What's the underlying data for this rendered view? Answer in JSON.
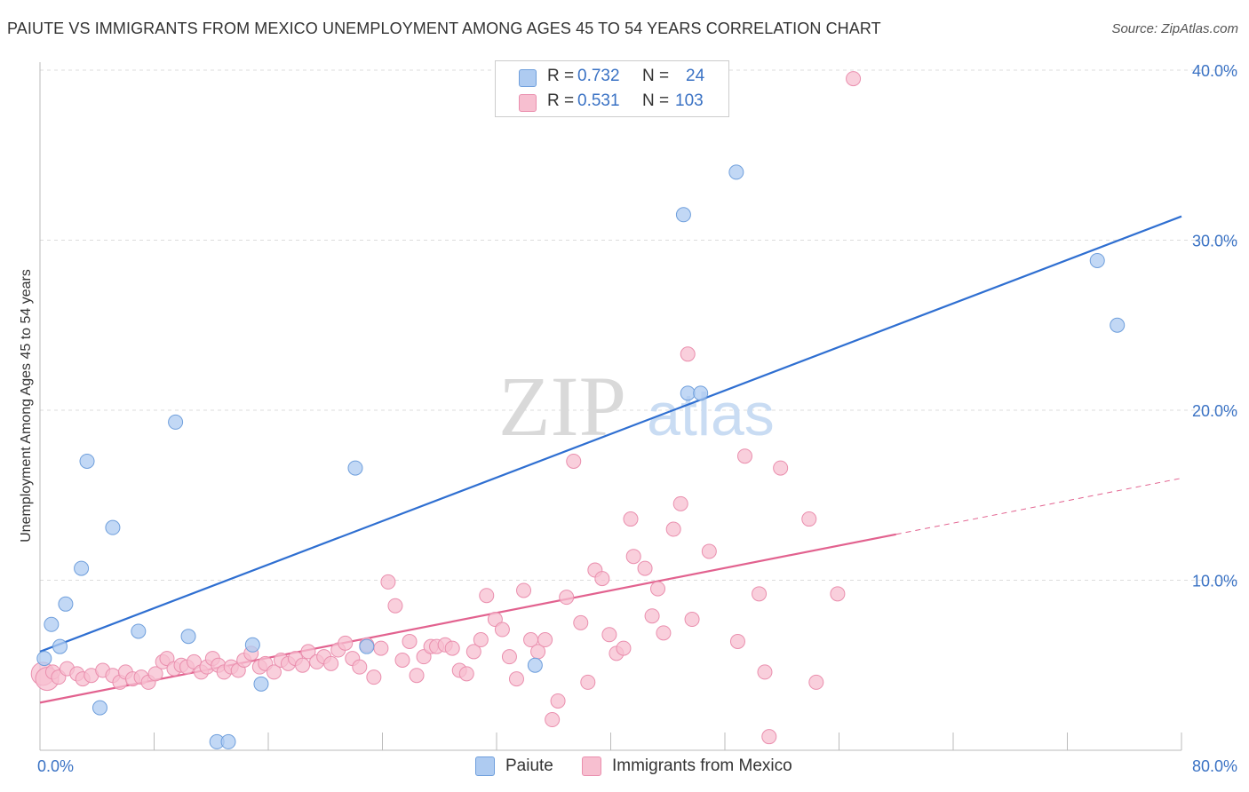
{
  "title": "PAIUTE VS IMMIGRANTS FROM MEXICO UNEMPLOYMENT AMONG AGES 45 TO 54 YEARS CORRELATION CHART",
  "source": "Source: ZipAtlas.com",
  "watermark": {
    "zip": "ZIP",
    "atlas": "atlas"
  },
  "legend_top": [
    {
      "r_label": "R =",
      "r_value": "0.732",
      "n_label": "N =",
      "n_value": "24"
    },
    {
      "r_label": "R =",
      "r_value": "0.531",
      "n_label": "N =",
      "n_value": "103"
    }
  ],
  "legend_bottom": [
    "Paiute",
    "Immigrants from Mexico"
  ],
  "colors": {
    "paiute_fill": "#aecbf1",
    "paiute_stroke": "#6f9fdc",
    "paiute_line": "#2f6fd1",
    "mexico_fill": "#f7bfd0",
    "mexico_stroke": "#ea8fae",
    "mexico_line": "#e2628f",
    "axis_label": "#3a72c4",
    "grid": "#dddddd"
  },
  "chart_data": {
    "type": "scatter",
    "title": "PAIUTE VS IMMIGRANTS FROM MEXICO UNEMPLOYMENT AMONG AGES 45 TO 54 YEARS CORRELATION CHART",
    "xlabel": "",
    "ylabel": "Unemployment Among Ages 45 to 54 years",
    "xlim": [
      0,
      80
    ],
    "ylim": [
      0,
      40
    ],
    "x_tick_labels": [
      "0.0%",
      "80.0%"
    ],
    "y_ticks": [
      10,
      20,
      30,
      40
    ],
    "y_tick_labels": [
      "10.0%",
      "20.0%",
      "30.0%",
      "40.0%"
    ],
    "grid": true,
    "legend_position": "top-center",
    "series": [
      {
        "name": "Paiute",
        "r": 0.732,
        "n": 24,
        "trend": {
          "x": [
            0,
            80
          ],
          "y": [
            5.8,
            31.4
          ],
          "dashed_from": null
        },
        "points": [
          [
            0.3,
            5.4
          ],
          [
            0.8,
            7.4
          ],
          [
            1.4,
            6.1
          ],
          [
            1.8,
            8.6
          ],
          [
            2.9,
            10.7
          ],
          [
            3.3,
            17.0
          ],
          [
            4.2,
            2.5
          ],
          [
            5.1,
            13.1
          ],
          [
            6.9,
            7.0
          ],
          [
            9.5,
            19.3
          ],
          [
            10.4,
            6.7
          ],
          [
            12.4,
            0.5
          ],
          [
            13.2,
            0.5
          ],
          [
            14.9,
            6.2
          ],
          [
            15.5,
            3.9
          ],
          [
            22.1,
            16.6
          ],
          [
            22.9,
            6.1
          ],
          [
            34.7,
            5.0
          ],
          [
            45.1,
            31.5
          ],
          [
            45.4,
            21.0
          ],
          [
            46.3,
            21.0
          ],
          [
            48.8,
            34.0
          ],
          [
            74.1,
            28.8
          ],
          [
            75.5,
            25.0
          ]
        ]
      },
      {
        "name": "Immigrants from Mexico",
        "r": 0.531,
        "n": 103,
        "trend": {
          "x": [
            0,
            80
          ],
          "y": [
            2.8,
            16.0
          ],
          "solid_until_x": 60
        },
        "points": [
          [
            0.2,
            4.5
          ],
          [
            0.5,
            4.2
          ],
          [
            0.9,
            4.6
          ],
          [
            1.3,
            4.3
          ],
          [
            1.9,
            4.8
          ],
          [
            2.6,
            4.5
          ],
          [
            3.0,
            4.2
          ],
          [
            3.6,
            4.4
          ],
          [
            4.4,
            4.7
          ],
          [
            5.1,
            4.4
          ],
          [
            5.6,
            4.0
          ],
          [
            6.0,
            4.6
          ],
          [
            6.5,
            4.2
          ],
          [
            7.1,
            4.3
          ],
          [
            7.6,
            4.0
          ],
          [
            8.1,
            4.5
          ],
          [
            8.6,
            5.2
          ],
          [
            8.9,
            5.4
          ],
          [
            9.4,
            4.8
          ],
          [
            9.9,
            5.0
          ],
          [
            10.3,
            4.9
          ],
          [
            10.8,
            5.2
          ],
          [
            11.3,
            4.6
          ],
          [
            11.7,
            4.9
          ],
          [
            12.1,
            5.4
          ],
          [
            12.5,
            5.0
          ],
          [
            12.9,
            4.6
          ],
          [
            13.4,
            4.9
          ],
          [
            13.9,
            4.7
          ],
          [
            14.3,
            5.3
          ],
          [
            14.8,
            5.7
          ],
          [
            15.4,
            4.9
          ],
          [
            15.8,
            5.1
          ],
          [
            16.4,
            4.6
          ],
          [
            16.9,
            5.3
          ],
          [
            17.4,
            5.1
          ],
          [
            17.9,
            5.4
          ],
          [
            18.4,
            5.0
          ],
          [
            18.8,
            5.8
          ],
          [
            19.4,
            5.2
          ],
          [
            19.9,
            5.5
          ],
          [
            20.4,
            5.1
          ],
          [
            20.9,
            5.9
          ],
          [
            21.4,
            6.3
          ],
          [
            21.9,
            5.4
          ],
          [
            22.4,
            4.9
          ],
          [
            22.9,
            6.2
          ],
          [
            23.4,
            4.3
          ],
          [
            23.9,
            6.0
          ],
          [
            24.4,
            9.9
          ],
          [
            24.9,
            8.5
          ],
          [
            25.4,
            5.3
          ],
          [
            25.9,
            6.4
          ],
          [
            26.4,
            4.4
          ],
          [
            26.9,
            5.5
          ],
          [
            27.4,
            6.1
          ],
          [
            27.8,
            6.1
          ],
          [
            28.4,
            6.2
          ],
          [
            28.9,
            6.0
          ],
          [
            29.4,
            4.7
          ],
          [
            29.9,
            4.5
          ],
          [
            30.4,
            5.8
          ],
          [
            30.9,
            6.5
          ],
          [
            31.3,
            9.1
          ],
          [
            31.9,
            7.7
          ],
          [
            32.4,
            7.1
          ],
          [
            32.9,
            5.5
          ],
          [
            33.4,
            4.2
          ],
          [
            33.9,
            9.4
          ],
          [
            34.4,
            6.5
          ],
          [
            34.9,
            5.8
          ],
          [
            35.4,
            6.5
          ],
          [
            35.9,
            1.8
          ],
          [
            36.3,
            2.9
          ],
          [
            36.9,
            9.0
          ],
          [
            37.4,
            17.0
          ],
          [
            37.9,
            7.5
          ],
          [
            38.4,
            4.0
          ],
          [
            38.9,
            10.6
          ],
          [
            39.4,
            10.1
          ],
          [
            39.9,
            6.8
          ],
          [
            40.4,
            5.7
          ],
          [
            40.9,
            6.0
          ],
          [
            41.4,
            13.6
          ],
          [
            41.6,
            11.4
          ],
          [
            42.4,
            10.7
          ],
          [
            42.9,
            7.9
          ],
          [
            43.3,
            9.5
          ],
          [
            43.7,
            6.9
          ],
          [
            44.4,
            13.0
          ],
          [
            44.9,
            14.5
          ],
          [
            45.4,
            23.3
          ],
          [
            45.7,
            7.7
          ],
          [
            46.9,
            11.7
          ],
          [
            48.9,
            6.4
          ],
          [
            49.4,
            17.3
          ],
          [
            50.4,
            9.2
          ],
          [
            50.8,
            4.6
          ],
          [
            51.1,
            0.8
          ],
          [
            51.9,
            16.6
          ],
          [
            53.9,
            13.6
          ],
          [
            54.4,
            4.0
          ],
          [
            55.9,
            9.2
          ],
          [
            57.0,
            39.5
          ]
        ]
      }
    ]
  }
}
